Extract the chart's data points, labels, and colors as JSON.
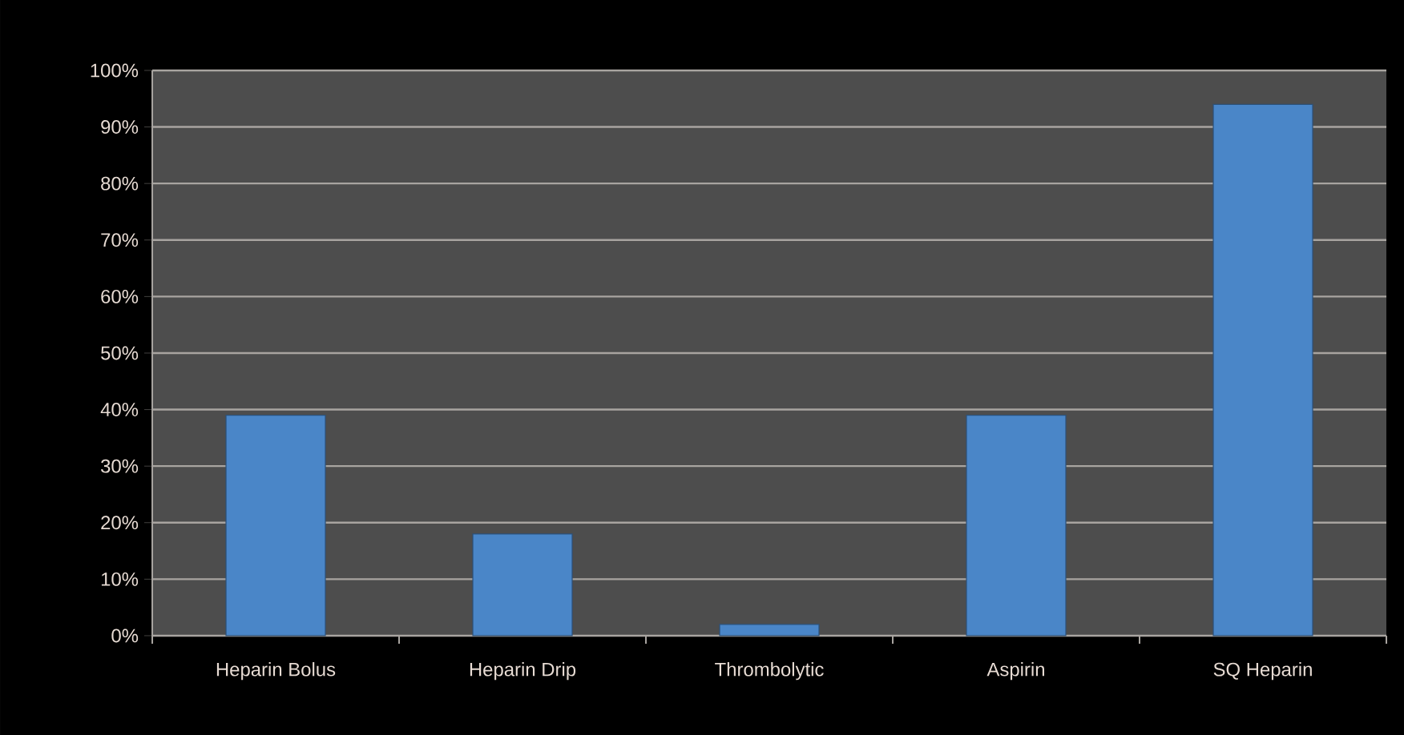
{
  "chart_data": {
    "type": "bar",
    "categories": [
      "Heparin Bolus",
      "Heparin Drip",
      "Thrombolytic",
      "Aspirin",
      "SQ Heparin"
    ],
    "values": [
      39,
      18,
      2,
      39,
      94
    ],
    "color": "#4a86c8",
    "ylim": [
      0,
      100
    ],
    "yticks": [
      {
        "value": 0,
        "label": "0%"
      },
      {
        "value": 10,
        "label": "10%"
      },
      {
        "value": 20,
        "label": "20%"
      },
      {
        "value": 30,
        "label": "30%"
      },
      {
        "value": 40,
        "label": "40%"
      },
      {
        "value": 50,
        "label": "50%"
      },
      {
        "value": 60,
        "label": "60%"
      },
      {
        "value": 70,
        "label": "70%"
      },
      {
        "value": 80,
        "label": "80%"
      },
      {
        "value": 90,
        "label": "90%"
      },
      {
        "value": 100,
        "label": "100%"
      }
    ],
    "grid": "y"
  }
}
